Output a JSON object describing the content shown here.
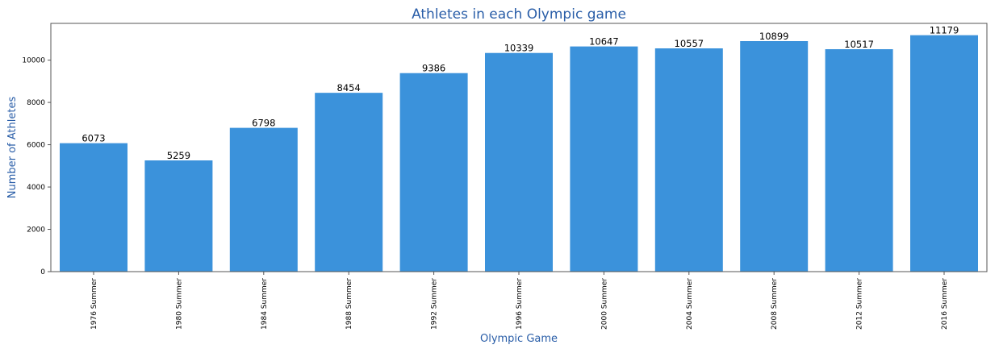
{
  "chart_data": {
    "type": "bar",
    "title": "Athletes in each Olympic game",
    "xlabel": "Olympic Game",
    "ylabel": "Number of Athletes",
    "categories": [
      "1976 Summer",
      "1980 Summer",
      "1984 Summer",
      "1988 Summer",
      "1992 Summer",
      "1996 Summer",
      "2000 Summer",
      "2004 Summer",
      "2008 Summer",
      "2012 Summer",
      "2016 Summer"
    ],
    "values": [
      6073,
      5259,
      6798,
      8454,
      9386,
      10339,
      10647,
      10557,
      10899,
      10517,
      11179
    ],
    "data_labels": [
      "6073",
      "5259",
      "6798",
      "8454",
      "9386",
      "10339",
      "10647",
      "10557",
      "10899",
      "10517",
      "11179"
    ],
    "ylim": [
      0,
      11738
    ],
    "yticks": [
      0,
      2000,
      4000,
      6000,
      8000,
      10000
    ],
    "ytick_labels": [
      "0",
      "2000",
      "4000",
      "6000",
      "8000",
      "10000"
    ],
    "grid": false,
    "legend": "none",
    "colors": {
      "bar": "#3b92db",
      "title": "#2a5ea8",
      "axis_title": "#2a5ea8",
      "axis": "#555555"
    }
  }
}
